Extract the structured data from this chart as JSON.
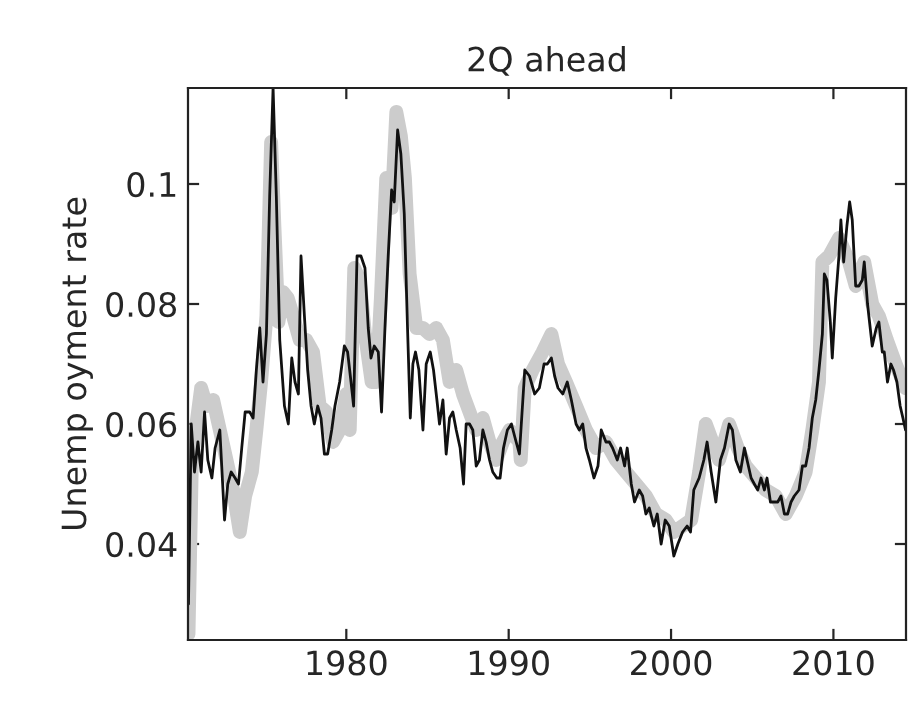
{
  "chart_data": {
    "type": "line",
    "title": "2Q ahead",
    "ylabel": "Unemp oyment rate",
    "xlim": [
      1970.25,
      2014.47
    ],
    "ylim": [
      0.024,
      0.116
    ],
    "xticks": [
      1980,
      1990,
      2000,
      2010
    ],
    "yticks": [
      0.04,
      0.06,
      0.08,
      0.1
    ],
    "grid": false,
    "legend": false,
    "marker": "none",
    "line_style": "solid",
    "series": [
      {
        "color": "#cccccc",
        "x": [
          1970.28,
          1970.49,
          1970.77,
          1971.06,
          1971.39,
          1971.8,
          1972.21,
          1972.62,
          1973.03,
          1973.44,
          1973.77,
          1974.18,
          1974.46,
          1974.75,
          1975.08,
          1975.37,
          1975.57,
          1975.82,
          1976.1,
          1976.39,
          1976.72,
          1977.13,
          1977.54,
          1977.95,
          1978.36,
          1978.77,
          1979.18,
          1979.59,
          1980.0,
          1980.21,
          1980.49,
          1980.82,
          1981.15,
          1981.56,
          1981.85,
          1982.13,
          1982.46,
          1982.79,
          1983.08,
          1983.36,
          1983.61,
          1983.9,
          1984.31,
          1984.72,
          1985.13,
          1985.54,
          1985.95,
          1986.36,
          1986.77,
          1987.18,
          1987.59,
          1988.0,
          1988.41,
          1988.82,
          1989.23,
          1989.64,
          1990.05,
          1990.66,
          1990.74,
          1990.99,
          1991.48,
          1992.09,
          1992.63,
          1993.04,
          1993.53,
          1994.15,
          1994.76,
          1995.38,
          1995.99,
          1996.61,
          1997.22,
          1997.84,
          1998.45,
          1999.07,
          1999.68,
          2000.17,
          2000.71,
          2001.24,
          2001.73,
          2002.14,
          2002.55,
          2002.96,
          2003.58,
          2004.11,
          2004.6,
          2005.22,
          2005.83,
          2006.45,
          2007.06,
          2007.68,
          2008.29,
          2008.7,
          2009.11,
          2009.32,
          2009.73,
          2010.34,
          2010.96,
          2011.37,
          2011.9,
          2012.39,
          2012.8,
          2013.29,
          2013.83,
          2014.44
        ],
        "values": [
          0.025,
          0.054,
          0.06,
          0.066,
          0.063,
          0.064,
          0.059,
          0.054,
          0.049,
          0.042,
          0.048,
          0.052,
          0.059,
          0.067,
          0.078,
          0.107,
          0.093,
          0.077,
          0.082,
          0.081,
          0.078,
          0.074,
          0.074,
          0.072,
          0.063,
          0.062,
          0.057,
          0.059,
          0.065,
          0.059,
          0.086,
          0.084,
          0.075,
          0.067,
          0.067,
          0.081,
          0.101,
          0.096,
          0.112,
          0.108,
          0.101,
          0.085,
          0.076,
          0.076,
          0.075,
          0.076,
          0.074,
          0.067,
          0.069,
          0.065,
          0.062,
          0.059,
          0.061,
          0.057,
          0.054,
          0.057,
          0.059,
          0.057,
          0.054,
          0.066,
          0.069,
          0.072,
          0.075,
          0.07,
          0.067,
          0.063,
          0.059,
          0.056,
          0.057,
          0.054,
          0.052,
          0.05,
          0.048,
          0.045,
          0.044,
          0.042,
          0.043,
          0.044,
          0.052,
          0.06,
          0.057,
          0.054,
          0.06,
          0.056,
          0.053,
          0.051,
          0.049,
          0.048,
          0.045,
          0.048,
          0.052,
          0.059,
          0.067,
          0.087,
          0.088,
          0.091,
          0.087,
          0.083,
          0.087,
          0.08,
          0.078,
          0.074,
          0.07,
          0.066
        ]
      },
      {
        "color": "#111111",
        "x": [
          1970.28,
          1970.45,
          1970.65,
          1970.86,
          1971.06,
          1971.27,
          1971.47,
          1971.72,
          1971.92,
          1972.21,
          1972.5,
          1972.7,
          1972.91,
          1973.15,
          1973.36,
          1973.56,
          1973.77,
          1974.05,
          1974.26,
          1974.46,
          1974.67,
          1974.87,
          1975.08,
          1975.28,
          1975.49,
          1975.69,
          1975.9,
          1976.19,
          1976.43,
          1976.64,
          1976.84,
          1977.05,
          1977.21,
          1977.42,
          1977.62,
          1977.83,
          1978.03,
          1978.24,
          1978.44,
          1978.65,
          1978.85,
          1979.1,
          1979.3,
          1979.59,
          1979.88,
          1980.08,
          1980.29,
          1980.45,
          1980.66,
          1980.9,
          1981.15,
          1981.35,
          1981.52,
          1981.72,
          1981.97,
          1982.17,
          1982.38,
          1982.58,
          1982.79,
          1982.95,
          1983.16,
          1983.36,
          1983.57,
          1983.77,
          1983.94,
          1984.1,
          1984.26,
          1984.47,
          1984.72,
          1984.92,
          1985.17,
          1985.37,
          1985.58,
          1985.74,
          1985.95,
          1986.15,
          1986.36,
          1986.56,
          1986.77,
          1987.01,
          1987.22,
          1987.38,
          1987.59,
          1987.79,
          1988.0,
          1988.2,
          1988.41,
          1988.61,
          1988.82,
          1989.02,
          1989.27,
          1989.47,
          1989.68,
          1989.92,
          1990.17,
          1990.46,
          1990.66,
          1990.99,
          1991.28,
          1991.6,
          1991.89,
          1992.18,
          1992.38,
          1992.63,
          1992.83,
          1993.04,
          1993.33,
          1993.61,
          1993.86,
          1994.15,
          1994.35,
          1994.56,
          1994.76,
          1994.97,
          1995.25,
          1995.5,
          1995.7,
          1995.99,
          1996.2,
          1996.4,
          1996.69,
          1996.89,
          1997.14,
          1997.3,
          1997.55,
          1997.75,
          1998.04,
          1998.25,
          1998.45,
          1998.66,
          1998.94,
          1999.15,
          1999.39,
          1999.64,
          1999.89,
          2000.17,
          2000.42,
          2000.71,
          2000.99,
          2001.2,
          2001.4,
          2001.73,
          2002.02,
          2002.22,
          2002.47,
          2002.76,
          2003.04,
          2003.29,
          2003.58,
          2003.78,
          2003.99,
          2004.27,
          2004.52,
          2004.68,
          2004.93,
          2005.13,
          2005.34,
          2005.54,
          2005.75,
          2005.91,
          2006.12,
          2006.36,
          2006.57,
          2006.77,
          2006.98,
          2007.18,
          2007.39,
          2007.59,
          2007.88,
          2008.09,
          2008.29,
          2008.5,
          2008.7,
          2008.91,
          2009.11,
          2009.32,
          2009.44,
          2009.6,
          2009.81,
          2009.93,
          2010.14,
          2010.34,
          2010.46,
          2010.63,
          2010.83,
          2011.0,
          2011.16,
          2011.37,
          2011.57,
          2011.78,
          2011.9,
          2012.1,
          2012.39,
          2012.64,
          2012.8,
          2013.01,
          2013.13,
          2013.33,
          2013.54,
          2013.7,
          2013.91,
          2014.11,
          2014.28,
          2014.44
        ],
        "values": [
          0.03,
          0.06,
          0.052,
          0.057,
          0.052,
          0.062,
          0.054,
          0.051,
          0.056,
          0.059,
          0.044,
          0.05,
          0.052,
          0.051,
          0.05,
          0.056,
          0.062,
          0.062,
          0.061,
          0.069,
          0.076,
          0.067,
          0.075,
          0.098,
          0.116,
          0.098,
          0.074,
          0.063,
          0.06,
          0.071,
          0.067,
          0.065,
          0.088,
          0.078,
          0.069,
          0.063,
          0.06,
          0.063,
          0.061,
          0.055,
          0.055,
          0.059,
          0.063,
          0.067,
          0.073,
          0.072,
          0.067,
          0.063,
          0.088,
          0.088,
          0.086,
          0.076,
          0.071,
          0.073,
          0.072,
          0.062,
          0.076,
          0.088,
          0.099,
          0.097,
          0.109,
          0.105,
          0.095,
          0.076,
          0.061,
          0.07,
          0.072,
          0.069,
          0.059,
          0.07,
          0.072,
          0.069,
          0.064,
          0.06,
          0.064,
          0.055,
          0.061,
          0.062,
          0.059,
          0.056,
          0.05,
          0.06,
          0.06,
          0.059,
          0.053,
          0.054,
          0.059,
          0.057,
          0.054,
          0.052,
          0.051,
          0.051,
          0.056,
          0.059,
          0.06,
          0.057,
          0.055,
          0.069,
          0.068,
          0.065,
          0.066,
          0.07,
          0.07,
          0.071,
          0.068,
          0.066,
          0.065,
          0.067,
          0.064,
          0.06,
          0.059,
          0.06,
          0.056,
          0.054,
          0.051,
          0.053,
          0.059,
          0.057,
          0.057,
          0.056,
          0.054,
          0.056,
          0.053,
          0.056,
          0.05,
          0.047,
          0.049,
          0.048,
          0.045,
          0.046,
          0.043,
          0.045,
          0.04,
          0.044,
          0.043,
          0.038,
          0.04,
          0.042,
          0.043,
          0.042,
          0.049,
          0.051,
          0.054,
          0.057,
          0.052,
          0.047,
          0.054,
          0.056,
          0.06,
          0.059,
          0.054,
          0.052,
          0.056,
          0.054,
          0.051,
          0.05,
          0.049,
          0.051,
          0.049,
          0.051,
          0.047,
          0.047,
          0.047,
          0.048,
          0.045,
          0.045,
          0.047,
          0.048,
          0.049,
          0.053,
          0.053,
          0.056,
          0.061,
          0.064,
          0.069,
          0.075,
          0.085,
          0.084,
          0.077,
          0.071,
          0.081,
          0.088,
          0.094,
          0.087,
          0.093,
          0.097,
          0.094,
          0.083,
          0.083,
          0.084,
          0.087,
          0.08,
          0.073,
          0.076,
          0.077,
          0.072,
          0.072,
          0.067,
          0.07,
          0.069,
          0.067,
          0.063,
          0.061,
          0.059
        ]
      }
    ]
  }
}
